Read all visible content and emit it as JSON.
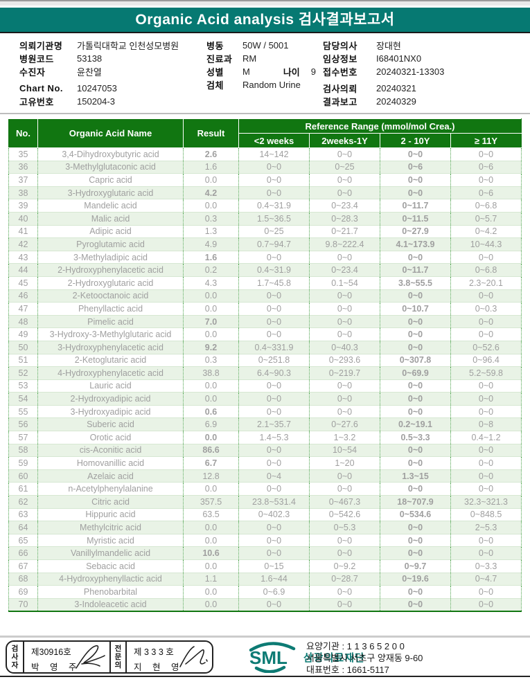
{
  "banner": {
    "title": "Organic Acid analysis 검사결과보고서"
  },
  "colors": {
    "banner_teal": "#067972",
    "table_header_green": "#117611",
    "row_alt_green": "#e9f3e6",
    "flag_high_red": "#e8261d",
    "flag_low_blue": "#2323cc",
    "sml_teal": "#0d7b74"
  },
  "patient_info": {
    "institution": {
      "label": "의뢰기관명",
      "value": "가톨릭대학교 인천성모병원"
    },
    "hospital_code": {
      "label": "병원코드",
      "value": "53138"
    },
    "patient": {
      "label": "수진자",
      "value": "윤찬열"
    },
    "chart_no": {
      "label": "Chart No.",
      "value": "10247053"
    },
    "unique_no": {
      "label": "고유번호",
      "value": "150204-3"
    },
    "ward": {
      "label": "병동",
      "value": "50W / 5001"
    },
    "department": {
      "label": "진료과",
      "value": "RM"
    },
    "sex": {
      "label": "성별",
      "value": "M"
    },
    "age": {
      "label": "나이",
      "value": "9"
    },
    "specimen": {
      "label": "검체",
      "value": "Random Urine"
    },
    "doctor": {
      "label": "담당의사",
      "value": "장대현"
    },
    "clinical_info": {
      "label": "임상정보",
      "value": "I68401NX0"
    },
    "receipt_no": {
      "label": "접수번호",
      "value": "20240321-13303"
    },
    "request_date": {
      "label": "검사의뢰",
      "value": "20240321"
    },
    "report_date": {
      "label": "결과보고",
      "value": "20240329"
    }
  },
  "table": {
    "col_no": "No.",
    "col_name": "Organic Acid Name",
    "col_result": "Result",
    "ref_group": "Reference Range (mmol/mol Crea.)",
    "ref_cols": [
      "<2 weeks",
      "2weeks-1Y",
      "2 - 10Y",
      "≥ 11Y"
    ],
    "rows": [
      {
        "no": "35",
        "name": "3,4-Dihydroxybutyric acid",
        "result": "2.6",
        "flag": "high",
        "ranges": [
          "14~142",
          "0~0",
          "0~0",
          "0~0"
        ]
      },
      {
        "no": "36",
        "name": "3-Methylglutaconic acid",
        "result": "1.6",
        "flag": "",
        "ranges": [
          "0~0",
          "0~25",
          "0~6",
          "0~6"
        ]
      },
      {
        "no": "37",
        "name": "Capric acid",
        "result": "0.0",
        "flag": "",
        "ranges": [
          "0~0",
          "0~0",
          "0~0",
          "0~0"
        ]
      },
      {
        "no": "38",
        "name": "3-Hydroxyglutaric acid",
        "result": "4.2",
        "flag": "high",
        "ranges": [
          "0~0",
          "0~0",
          "0~0",
          "0~6"
        ]
      },
      {
        "no": "39",
        "name": "Mandelic acid",
        "result": "0.0",
        "flag": "",
        "ranges": [
          "0.4~31.9",
          "0~23.4",
          "0~11.7",
          "0~6.8"
        ]
      },
      {
        "no": "40",
        "name": "Malic acid",
        "result": "0.3",
        "flag": "",
        "ranges": [
          "1.5~36.5",
          "0~28.3",
          "0~11.5",
          "0~5.7"
        ]
      },
      {
        "no": "41",
        "name": "Adipic acid",
        "result": "1.3",
        "flag": "",
        "ranges": [
          "0~25",
          "0~21.7",
          "0~27.9",
          "0~4.2"
        ]
      },
      {
        "no": "42",
        "name": "Pyroglutamic acid",
        "result": "4.9",
        "flag": "",
        "ranges": [
          "0.7~94.7",
          "9.8~222.4",
          "4.1~173.9",
          "10~44.3"
        ]
      },
      {
        "no": "43",
        "name": "3-Methyladipic acid",
        "result": "1.6",
        "flag": "high",
        "ranges": [
          "0~0",
          "0~0",
          "0~0",
          "0~0"
        ]
      },
      {
        "no": "44",
        "name": "2-Hydroxyphenylacetic acid",
        "result": "0.2",
        "flag": "",
        "ranges": [
          "0.4~31.9",
          "0~23.4",
          "0~11.7",
          "0~6.8"
        ]
      },
      {
        "no": "45",
        "name": "2-Hydroxyglutaric acid",
        "result": "4.3",
        "flag": "",
        "ranges": [
          "1.7~45.8",
          "0.1~54",
          "3.8~55.5",
          "2.3~20.1"
        ]
      },
      {
        "no": "46",
        "name": "2-Ketooctanoic acid",
        "result": "0.0",
        "flag": "",
        "ranges": [
          "0~0",
          "0~0",
          "0~0",
          "0~0"
        ]
      },
      {
        "no": "47",
        "name": "Phenyllactic acid",
        "result": "0.0",
        "flag": "",
        "ranges": [
          "0~0",
          "0~0",
          "0~10.7",
          "0~0.3"
        ]
      },
      {
        "no": "48",
        "name": "Pimelic acid",
        "result": "7.0",
        "flag": "high",
        "ranges": [
          "0~0",
          "0~0",
          "0~0",
          "0~0"
        ]
      },
      {
        "no": "49",
        "name": "3-Hydroxy-3-Methylglutaric acid",
        "result": "0.0",
        "flag": "",
        "ranges": [
          "0~0",
          "0~0",
          "0~0",
          "0~0"
        ]
      },
      {
        "no": "50",
        "name": "3-Hydroxyphenylacetic acid",
        "result": "9.2",
        "flag": "high",
        "ranges": [
          "0.4~331.9",
          "0~40.3",
          "0~0",
          "0~52.6"
        ]
      },
      {
        "no": "51",
        "name": "2-Ketoglutaric acid",
        "result": "0.3",
        "flag": "",
        "ranges": [
          "0~251.8",
          "0~293.6",
          "0~307.8",
          "0~96.4"
        ]
      },
      {
        "no": "52",
        "name": "4-Hydroxyphenylacetic acid",
        "result": "38.8",
        "flag": "",
        "ranges": [
          "6.4~90.3",
          "0~219.7",
          "0~69.9",
          "5.2~59.8"
        ]
      },
      {
        "no": "53",
        "name": "Lauric acid",
        "result": "0.0",
        "flag": "",
        "ranges": [
          "0~0",
          "0~0",
          "0~0",
          "0~0"
        ]
      },
      {
        "no": "54",
        "name": "2-Hydroxyadipic acid",
        "result": "0.0",
        "flag": "",
        "ranges": [
          "0~0",
          "0~0",
          "0~0",
          "0~0"
        ]
      },
      {
        "no": "55",
        "name": "3-Hydroxyadipic acid",
        "result": "0.6",
        "flag": "high",
        "ranges": [
          "0~0",
          "0~0",
          "0~0",
          "0~0"
        ]
      },
      {
        "no": "56",
        "name": "Suberic acid",
        "result": "6.9",
        "flag": "",
        "ranges": [
          "2.1~35.7",
          "0~27.6",
          "0.2~19.1",
          "0~8"
        ]
      },
      {
        "no": "57",
        "name": "Orotic acid",
        "result": "0.0",
        "flag": "low",
        "ranges": [
          "1.4~5.3",
          "1~3.2",
          "0.5~3.3",
          "0.4~1.2"
        ]
      },
      {
        "no": "58",
        "name": "cis-Aconitic acid",
        "result": "86.6",
        "flag": "high",
        "ranges": [
          "0~0",
          "10~54",
          "0~0",
          "0~0"
        ]
      },
      {
        "no": "59",
        "name": "Homovanillic acid",
        "result": "6.7",
        "flag": "high",
        "ranges": [
          "0~0",
          "1~20",
          "0~0",
          "0~0"
        ]
      },
      {
        "no": "60",
        "name": "Azelaic acid",
        "result": "12.8",
        "flag": "",
        "ranges": [
          "0~4",
          "0~0",
          "1.3~15",
          "0~0"
        ]
      },
      {
        "no": "61",
        "name": "n-Acetylphenylalanine",
        "result": "0.0",
        "flag": "",
        "ranges": [
          "0~0",
          "0~0",
          "0~0",
          "0~0"
        ]
      },
      {
        "no": "62",
        "name": "Citric acid",
        "result": "357.5",
        "flag": "",
        "ranges": [
          "23.8~531.4",
          "0~467.3",
          "18~707.9",
          "32.3~321.3"
        ]
      },
      {
        "no": "63",
        "name": "Hippuric acid",
        "result": "63.5",
        "flag": "",
        "ranges": [
          "0~402.3",
          "0~542.6",
          "0~534.6",
          "0~848.5"
        ]
      },
      {
        "no": "64",
        "name": "Methylcitric acid",
        "result": "0.0",
        "flag": "",
        "ranges": [
          "0~0",
          "0~5.3",
          "0~0",
          "2~5.3"
        ]
      },
      {
        "no": "65",
        "name": "Myristic acid",
        "result": "0.0",
        "flag": "",
        "ranges": [
          "0~0",
          "0~0",
          "0~0",
          "0~0"
        ]
      },
      {
        "no": "66",
        "name": "Vanillylmandelic acid",
        "result": "10.6",
        "flag": "high",
        "ranges": [
          "0~0",
          "0~0",
          "0~0",
          "0~0"
        ]
      },
      {
        "no": "67",
        "name": "Sebacic acid",
        "result": "0.0",
        "flag": "",
        "ranges": [
          "0~15",
          "0~9.2",
          "0~9.7",
          "0~3.3"
        ]
      },
      {
        "no": "68",
        "name": "4-Hydroxyphenyllactic acid",
        "result": "1.1",
        "flag": "",
        "ranges": [
          "1.6~44",
          "0~28.7",
          "0~19.6",
          "0~4.7"
        ]
      },
      {
        "no": "69",
        "name": "Phenobarbital",
        "result": "0.0",
        "flag": "",
        "ranges": [
          "0~6.9",
          "0~0",
          "0~0",
          "0~0"
        ]
      },
      {
        "no": "70",
        "name": "3-Indoleacetic acid",
        "result": "0.0",
        "flag": "",
        "ranges": [
          "0~0",
          "0~0",
          "0~0",
          "0~0"
        ]
      }
    ]
  },
  "footer": {
    "examiner": {
      "role": "검사자",
      "license": "제30916호",
      "name": "박 영 주"
    },
    "specialist": {
      "role": "전문의",
      "license": "제 3 3 3 호",
      "name": "지 현 영"
    },
    "sml_logo_text": "SML",
    "sml_org": "삼광의료재단",
    "care_institution": "요양기관 : 1 1 3 6 5 2 0 0",
    "address": "서울특별시 서초구 양재동 9-60",
    "phone": "대표번호 : 1661-5117"
  }
}
